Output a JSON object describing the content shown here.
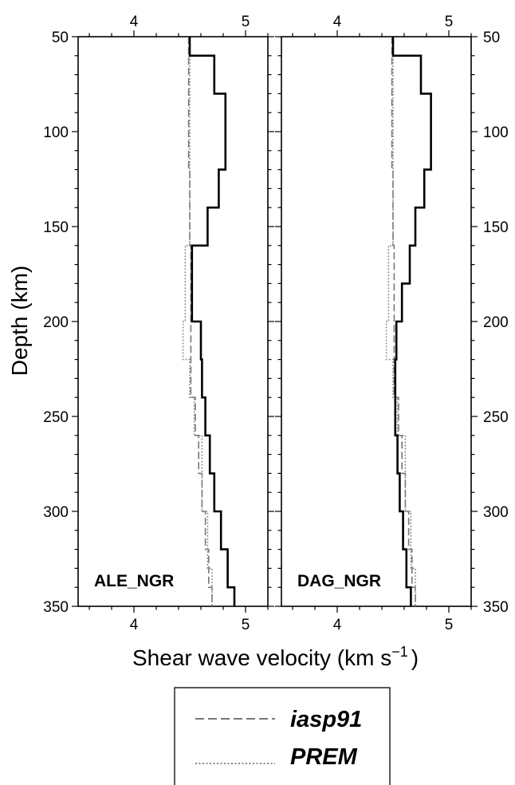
{
  "chart_data": {
    "type": "line",
    "xlabel": "Shear wave velocity (km s",
    "xlabel_sup": "−1",
    "xlabel_close": ")",
    "ylabel": "Depth (km)",
    "xlim": [
      3.5,
      5.2
    ],
    "ylim": [
      50,
      350
    ],
    "y_inverted": true,
    "x_ticks": [
      4,
      5
    ],
    "x_tick_labels": [
      "4",
      "5"
    ],
    "y_ticks": [
      50,
      100,
      150,
      200,
      250,
      300,
      350
    ],
    "y_tick_labels": [
      "50",
      "100",
      "150",
      "200",
      "250",
      "300",
      "350"
    ],
    "legend": {
      "placement": "bottom-center",
      "entries": [
        {
          "label": "iasp91",
          "style": "dashed",
          "color": "#777777"
        },
        {
          "label": "PREM",
          "style": "dotted",
          "color": "#888888"
        }
      ]
    },
    "reference_models": [
      {
        "name": "iasp91",
        "style": "dashed",
        "color": "#777777",
        "points": [
          [
            4.49,
            50
          ],
          [
            4.49,
            120
          ],
          [
            4.5,
            120
          ],
          [
            4.5,
            160
          ],
          [
            4.51,
            160
          ],
          [
            4.51,
            240
          ],
          [
            4.55,
            240
          ],
          [
            4.55,
            260
          ],
          [
            4.58,
            260
          ],
          [
            4.58,
            280
          ],
          [
            4.61,
            280
          ],
          [
            4.61,
            300
          ],
          [
            4.64,
            300
          ],
          [
            4.64,
            320
          ],
          [
            4.67,
            320
          ],
          [
            4.67,
            340
          ],
          [
            4.7,
            340
          ],
          [
            4.7,
            350
          ]
        ]
      },
      {
        "name": "PREM",
        "style": "dotted",
        "color": "#888888",
        "points": [
          [
            4.5,
            50
          ],
          [
            4.5,
            160
          ],
          [
            4.46,
            160
          ],
          [
            4.46,
            200
          ],
          [
            4.44,
            200
          ],
          [
            4.44,
            220
          ],
          [
            4.5,
            220
          ],
          [
            4.5,
            240
          ],
          [
            4.54,
            240
          ],
          [
            4.54,
            260
          ],
          [
            4.61,
            260
          ],
          [
            4.61,
            300
          ],
          [
            4.66,
            300
          ],
          [
            4.66,
            330
          ],
          [
            4.7,
            330
          ],
          [
            4.7,
            350
          ]
        ]
      }
    ],
    "panels": [
      {
        "name": "ALE_NGR",
        "color": "#000000",
        "values": [
          {
            "depth": [
              50,
              60
            ],
            "vs": 4.5
          },
          {
            "depth": [
              60,
              80
            ],
            "vs": 4.72
          },
          {
            "depth": [
              80,
              120
            ],
            "vs": 4.82
          },
          {
            "depth": [
              120,
              140
            ],
            "vs": 4.76
          },
          {
            "depth": [
              140,
              160
            ],
            "vs": 4.66
          },
          {
            "depth": [
              160,
              200
            ],
            "vs": 4.52
          },
          {
            "depth": [
              200,
              220
            ],
            "vs": 4.6
          },
          {
            "depth": [
              220,
              240
            ],
            "vs": 4.61
          },
          {
            "depth": [
              240,
              260
            ],
            "vs": 4.64
          },
          {
            "depth": [
              260,
              280
            ],
            "vs": 4.68
          },
          {
            "depth": [
              280,
              300
            ],
            "vs": 4.72
          },
          {
            "depth": [
              300,
              320
            ],
            "vs": 4.78
          },
          {
            "depth": [
              320,
              340
            ],
            "vs": 4.84
          },
          {
            "depth": [
              340,
              350
            ],
            "vs": 4.9
          }
        ]
      },
      {
        "name": "DAG_NGR",
        "color": "#000000",
        "values": [
          {
            "depth": [
              50,
              60
            ],
            "vs": 4.5
          },
          {
            "depth": [
              60,
              80
            ],
            "vs": 4.75
          },
          {
            "depth": [
              80,
              120
            ],
            "vs": 4.84
          },
          {
            "depth": [
              120,
              140
            ],
            "vs": 4.78
          },
          {
            "depth": [
              140,
              160
            ],
            "vs": 4.7
          },
          {
            "depth": [
              160,
              180
            ],
            "vs": 4.65
          },
          {
            "depth": [
              180,
              200
            ],
            "vs": 4.58
          },
          {
            "depth": [
              200,
              220
            ],
            "vs": 4.53
          },
          {
            "depth": [
              220,
              260
            ],
            "vs": 4.52
          },
          {
            "depth": [
              260,
              280
            ],
            "vs": 4.54
          },
          {
            "depth": [
              280,
              300
            ],
            "vs": 4.56
          },
          {
            "depth": [
              300,
              320
            ],
            "vs": 4.59
          },
          {
            "depth": [
              320,
              340
            ],
            "vs": 4.62
          },
          {
            "depth": [
              340,
              350
            ],
            "vs": 4.66
          }
        ]
      }
    ]
  }
}
